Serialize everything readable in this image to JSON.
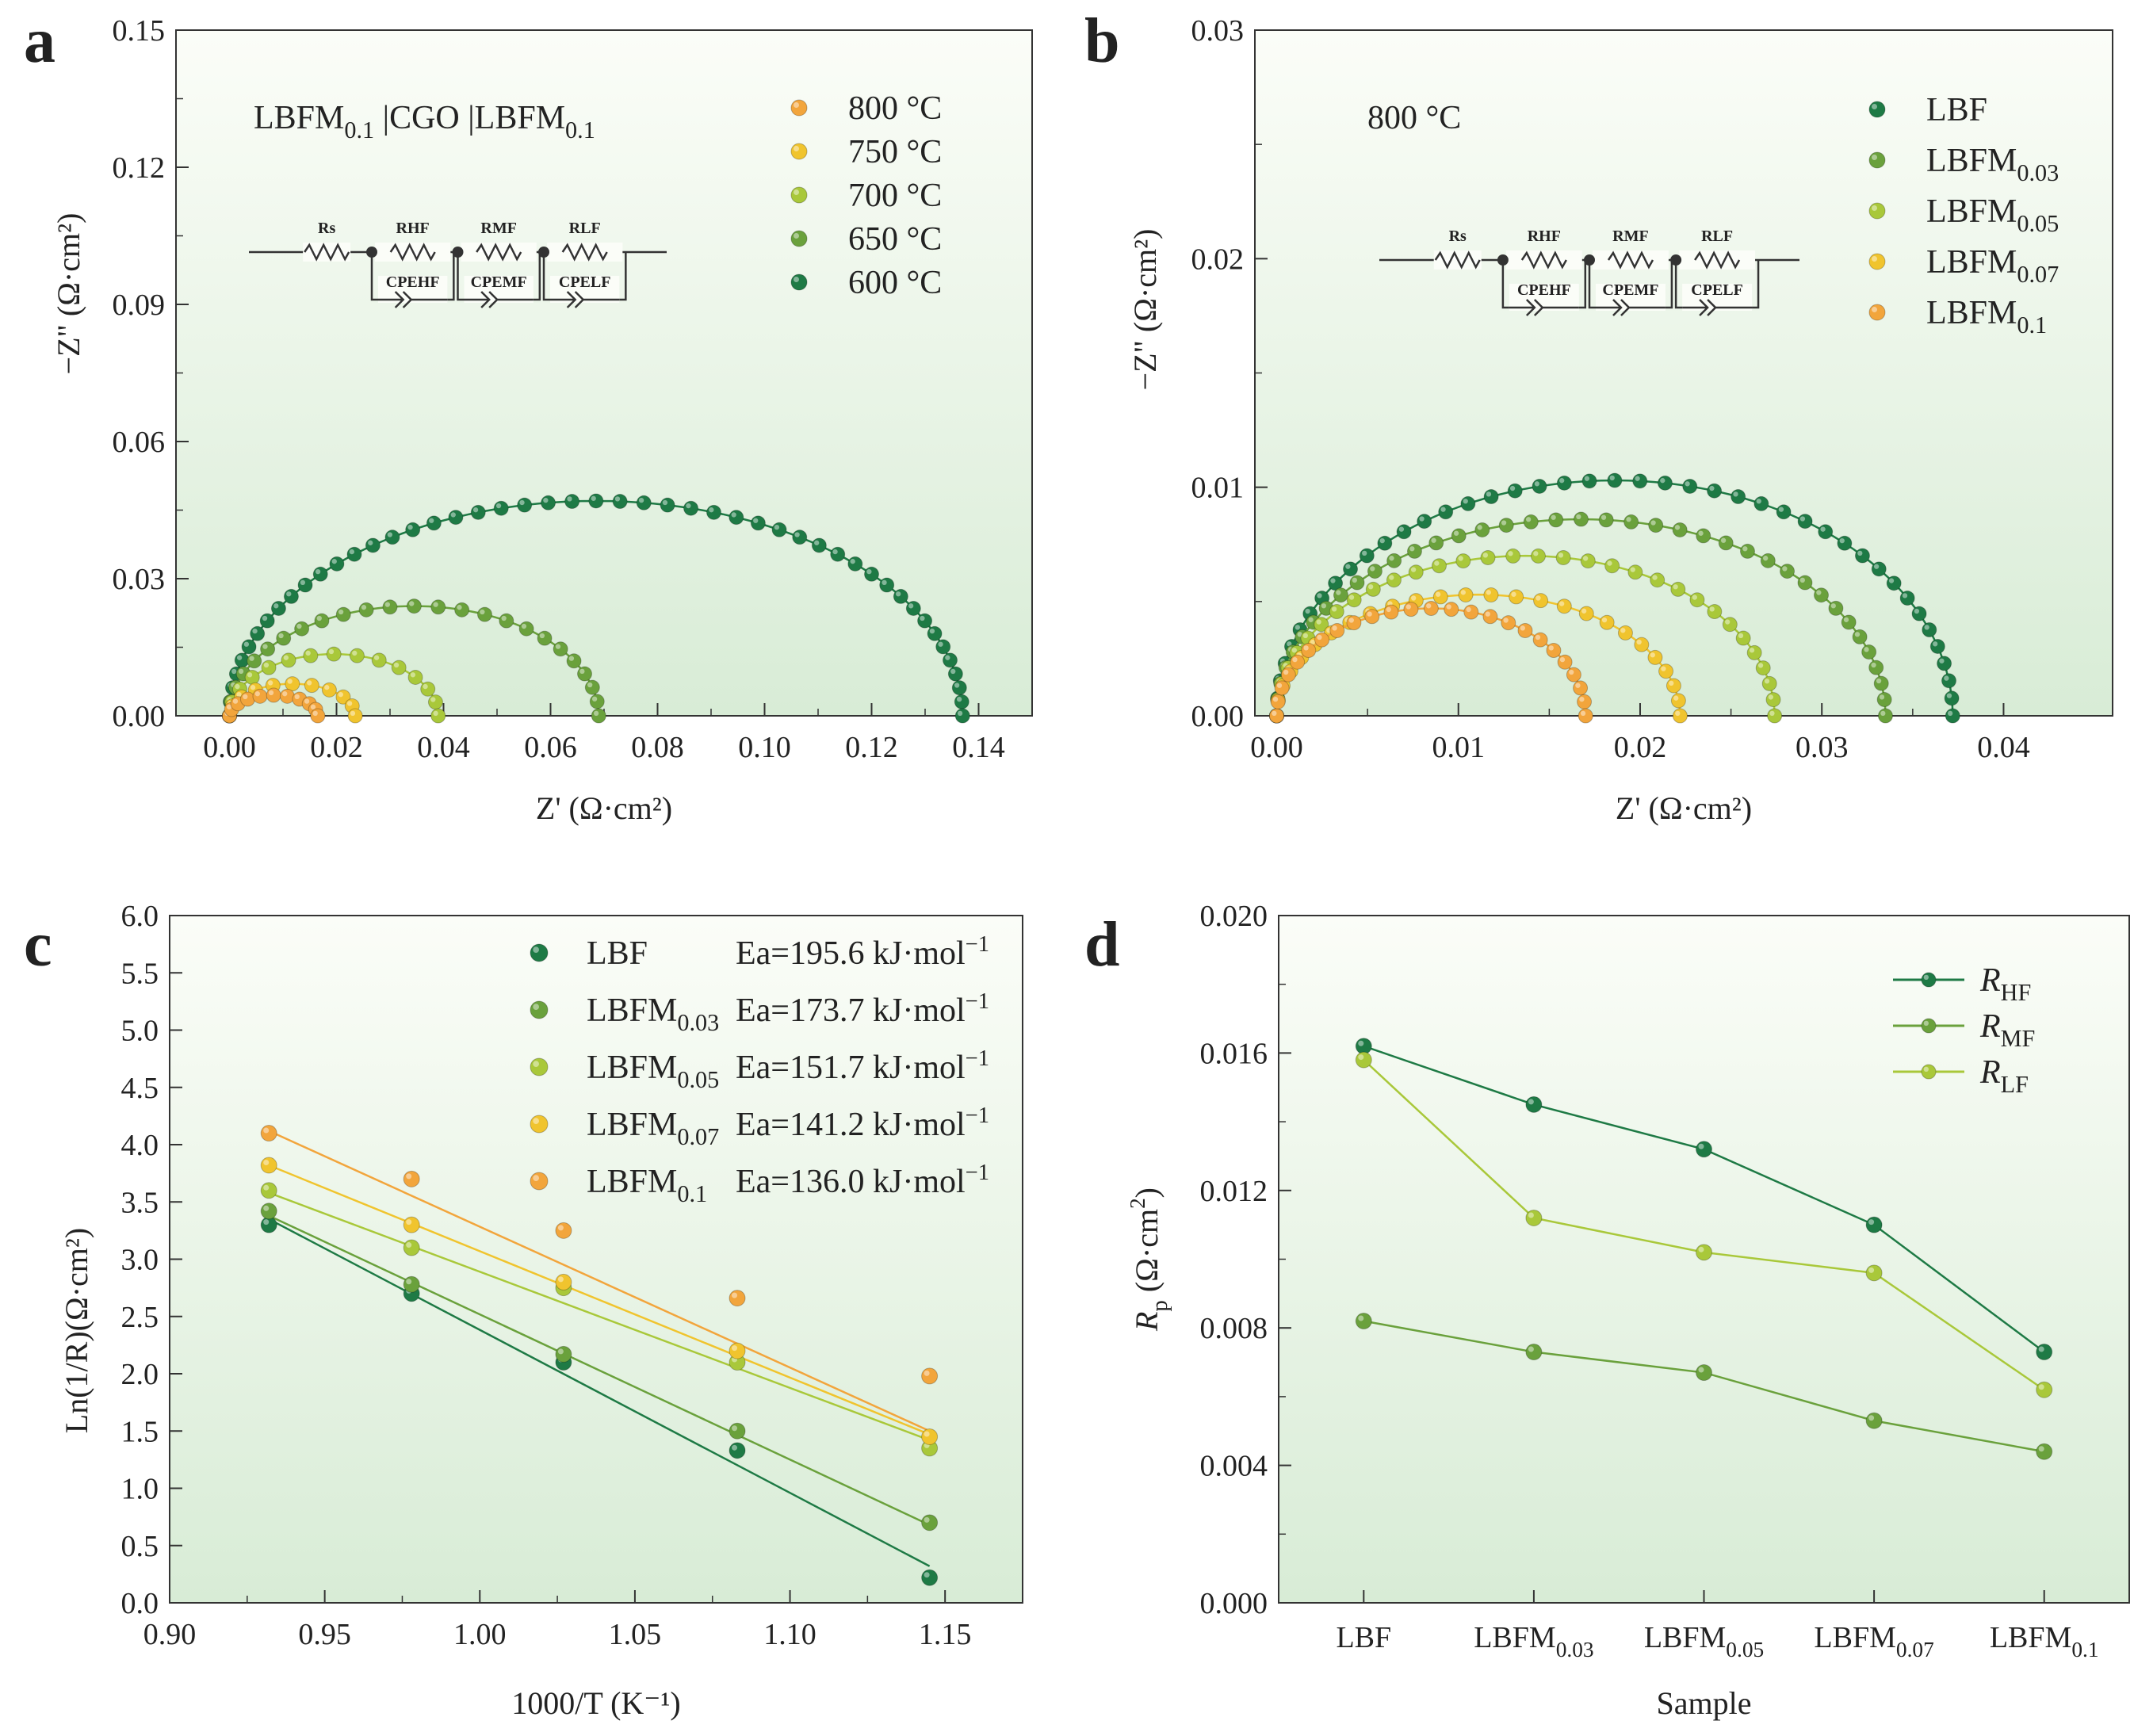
{
  "colors": {
    "dark_green": "#1e7a45",
    "mid_green": "#6aa13c",
    "yellow_green": "#a9c83a",
    "yellow": "#f0c42e",
    "orange": "#f2a53c",
    "plot_bg_top": "#fbfdf8",
    "plot_bg_bottom": "#dcefdc"
  },
  "chart_data": [
    {
      "id": "a",
      "panel_label": "a",
      "type": "scatter",
      "title": "",
      "annotation": {
        "main": "LBFM",
        "sub": "0.1",
        "mid": " |CGO |LBFM",
        "sub2": "0.1"
      },
      "circuit": [
        "Rs",
        "RHF",
        "RMF",
        "RLF",
        "CPEHF",
        "CPEMF",
        "CPELF"
      ],
      "xlabel": "Z' (Ω·cm²)",
      "ylabel": "−Z\" (Ω·cm²)",
      "xlim": [
        -0.01,
        0.15
      ],
      "ylim": [
        0,
        0.15
      ],
      "xticks": [
        "0.00",
        "0.02",
        "0.04",
        "0.06",
        "0.08",
        "0.10",
        "0.12",
        "0.14"
      ],
      "yticks": [
        "0.00",
        "0.03",
        "0.06",
        "0.09",
        "0.12",
        "0.15"
      ],
      "series": [
        {
          "name": "800 °C",
          "color": "orange",
          "x_start": 0.0,
          "x_end": 0.0165,
          "peak": 0.0045
        },
        {
          "name": "750 °C",
          "color": "yellow",
          "x_start": 0.0,
          "x_end": 0.0235,
          "peak": 0.007
        },
        {
          "name": "700 °C",
          "color": "yellow_green",
          "x_start": 0.0,
          "x_end": 0.039,
          "peak": 0.0135
        },
        {
          "name": "650 °C",
          "color": "mid_green",
          "x_start": 0.0,
          "x_end": 0.069,
          "peak": 0.024
        },
        {
          "name": "600 °C",
          "color": "dark_green",
          "x_start": 0.0,
          "x_end": 0.137,
          "peak": 0.047
        }
      ]
    },
    {
      "id": "b",
      "panel_label": "b",
      "type": "scatter",
      "title": "",
      "annotation": "800 °C",
      "circuit": [
        "Rs",
        "RHF",
        "RMF",
        "RLF",
        "CPEHF",
        "CPEMF",
        "CPELF"
      ],
      "xlabel": "Z' (Ω·cm²)",
      "ylabel": "−Z\" (Ω·cm²)",
      "xlim": [
        -0.0012,
        0.046
      ],
      "ylim": [
        0,
        0.03
      ],
      "xticks": [
        "0.00",
        "0.01",
        "0.02",
        "0.03",
        "0.04"
      ],
      "yticks": [
        "0.00",
        "0.01",
        "0.02",
        "0.03"
      ],
      "series": [
        {
          "name": "LBF",
          "sub": "",
          "color": "dark_green",
          "x_start": 0.0,
          "x_end": 0.0372,
          "peak": 0.0103
        },
        {
          "name": "LBFM",
          "sub": "0.03",
          "color": "mid_green",
          "x_start": 0.0,
          "x_end": 0.0335,
          "peak": 0.0086
        },
        {
          "name": "LBFM",
          "sub": "0.05",
          "color": "yellow_green",
          "x_start": 0.0,
          "x_end": 0.0274,
          "peak": 0.007
        },
        {
          "name": "LBFM",
          "sub": "0.07",
          "color": "yellow",
          "x_start": 0.0,
          "x_end": 0.0222,
          "peak": 0.0053
        },
        {
          "name": "LBFM",
          "sub": "0.1",
          "color": "orange",
          "x_start": 0.0,
          "x_end": 0.017,
          "peak": 0.0047
        }
      ]
    },
    {
      "id": "c",
      "panel_label": "c",
      "type": "scatter",
      "title": "",
      "xlabel": "1000/T (K⁻¹)",
      "ylabel": "Ln(1/R)(Ω·cm²)",
      "xlim": [
        0.9,
        1.175
      ],
      "ylim": [
        0,
        6.0
      ],
      "xticks": [
        "0.90",
        "0.95",
        "1.00",
        "1.05",
        "1.10",
        "1.15"
      ],
      "yticks": [
        "0.0",
        "0.5",
        "1.0",
        "1.5",
        "2.0",
        "2.5",
        "3.0",
        "3.5",
        "4.0",
        "4.5",
        "5.0",
        "5.5",
        "6.0"
      ],
      "x": [
        0.932,
        0.978,
        1.027,
        1.083,
        1.145
      ],
      "series": [
        {
          "name": "LBF",
          "sub": "",
          "ea": "Ea=195.6 kJ·mol",
          "color": "dark_green",
          "values": [
            3.3,
            2.7,
            2.1,
            1.33,
            0.22
          ],
          "fit": [
            3.35,
            0.32
          ]
        },
        {
          "name": "LBFM",
          "sub": "0.03",
          "ea": "Ea=173.7 kJ·mol",
          "color": "mid_green",
          "values": [
            3.42,
            2.78,
            2.17,
            1.5,
            0.7
          ],
          "fit": [
            3.38,
            0.68
          ]
        },
        {
          "name": "LBFM",
          "sub": "0.05",
          "ea": "Ea=151.7 kJ·mol",
          "color": "yellow_green",
          "values": [
            3.6,
            3.1,
            2.75,
            2.1,
            1.35
          ],
          "fit": [
            3.58,
            1.42
          ]
        },
        {
          "name": "LBFM",
          "sub": "0.07",
          "ea": "Ea=141.2 kJ·mol",
          "color": "yellow",
          "values": [
            3.82,
            3.3,
            2.8,
            2.2,
            1.45
          ],
          "fit": [
            3.82,
            1.47
          ]
        },
        {
          "name": "LBFM",
          "sub": "0.1",
          "ea": "Ea=136.0 kJ·mol",
          "color": "orange",
          "values": [
            4.1,
            3.7,
            3.25,
            2.66,
            1.98
          ],
          "fit": [
            4.12,
            1.5
          ]
        }
      ],
      "ea_sup": "−1"
    },
    {
      "id": "d",
      "panel_label": "d",
      "type": "line",
      "title": "",
      "xlabel": "Sample",
      "ylabel": "Rp (Ω·cm²)",
      "ylabel_main": "R",
      "ylabel_sub": "p",
      "ylabel_rest": " (Ω·cm",
      "ylim": [
        0,
        0.02
      ],
      "yticks": [
        "0.000",
        "0.004",
        "0.008",
        "0.012",
        "0.016",
        "0.020"
      ],
      "categories": [
        {
          "main": "LBF",
          "sub": ""
        },
        {
          "main": "LBFM",
          "sub": "0.03"
        },
        {
          "main": "LBFM",
          "sub": "0.05"
        },
        {
          "main": "LBFM",
          "sub": "0.07"
        },
        {
          "main": "LBFM",
          "sub": "0.1"
        }
      ],
      "series": [
        {
          "name": "R",
          "sub": "HF",
          "color": "dark_green",
          "values": [
            0.0162,
            0.0145,
            0.0132,
            0.011,
            0.0073
          ]
        },
        {
          "name": "R",
          "sub": "MF",
          "color": "mid_green",
          "values": [
            0.0082,
            0.0073,
            0.0067,
            0.0053,
            0.0044
          ]
        },
        {
          "name": "R",
          "sub": "LF",
          "color": "yellow_green",
          "values": [
            0.0158,
            0.0112,
            0.0102,
            0.0096,
            0.0062
          ]
        }
      ]
    }
  ]
}
